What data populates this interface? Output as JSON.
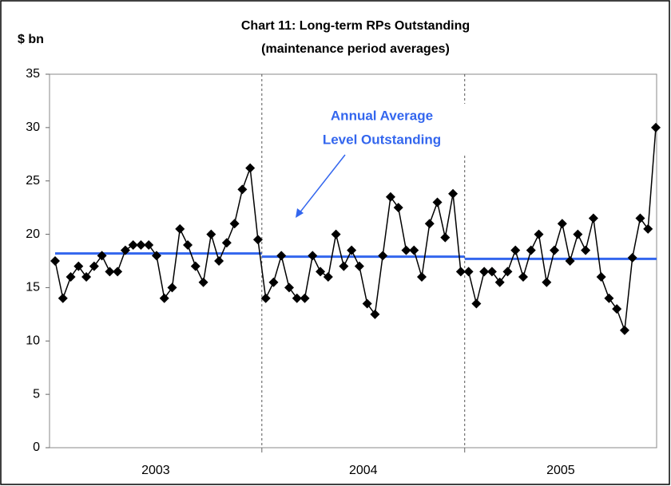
{
  "chart_data": {
    "type": "line",
    "title": [
      "Chart 11:  Long-term RPs Outstanding",
      "(maintenance period averages)"
    ],
    "y_label": "$ bn",
    "categories": [
      "2003",
      "2003",
      "2003",
      "2003",
      "2003",
      "2003",
      "2003",
      "2003",
      "2003",
      "2003",
      "2003",
      "2003",
      "2003",
      "2003",
      "2003",
      "2003",
      "2003",
      "2003",
      "2003",
      "2003",
      "2003",
      "2003",
      "2003",
      "2003",
      "2003",
      "2003",
      "2003",
      "2004",
      "2004",
      "2004",
      "2004",
      "2004",
      "2004",
      "2004",
      "2004",
      "2004",
      "2004",
      "2004",
      "2004",
      "2004",
      "2004",
      "2004",
      "2004",
      "2004",
      "2004",
      "2004",
      "2004",
      "2004",
      "2004",
      "2004",
      "2004",
      "2004",
      "2004",
      "2005",
      "2005",
      "2005",
      "2005",
      "2005",
      "2005",
      "2005",
      "2005",
      "2005",
      "2005",
      "2005",
      "2005",
      "2005",
      "2005",
      "2005",
      "2005",
      "2005",
      "2005",
      "2005",
      "2005",
      "2005",
      "2005",
      "2005",
      "2005",
      "2005"
    ],
    "values": [
      17.5,
      14,
      16,
      17,
      16,
      17,
      18,
      16.5,
      16.5,
      18.5,
      19,
      19,
      19,
      18,
      14,
      15,
      20.5,
      19,
      17,
      15.5,
      20,
      17.5,
      19.2,
      21,
      24.2,
      26.2,
      19.5,
      14,
      15.5,
      18,
      15,
      14,
      14,
      18,
      16.5,
      16,
      20,
      17,
      18.5,
      17,
      13.5,
      12.5,
      18,
      23.5,
      22.5,
      18.5,
      18.5,
      16,
      21,
      23,
      19.7,
      23.8,
      16.5,
      16.5,
      13.5,
      16.5,
      16.5,
      15.5,
      16.5,
      18.5,
      16,
      18.5,
      20,
      15.5,
      18.5,
      21,
      17.5,
      20,
      18.5,
      21.5,
      16,
      14,
      13,
      11,
      17.8,
      21.5,
      20.5,
      30
    ],
    "color": "#000000",
    "averages": [
      18.2,
      17.9,
      17.7
    ],
    "average_color": "#3366ee",
    "annotation": [
      "Annual Average",
      "Level Outstanding"
    ],
    "ylim": [
      0,
      35
    ],
    "yticks": [
      0,
      5,
      10,
      15,
      20,
      25,
      30,
      35
    ],
    "grid": false
  }
}
